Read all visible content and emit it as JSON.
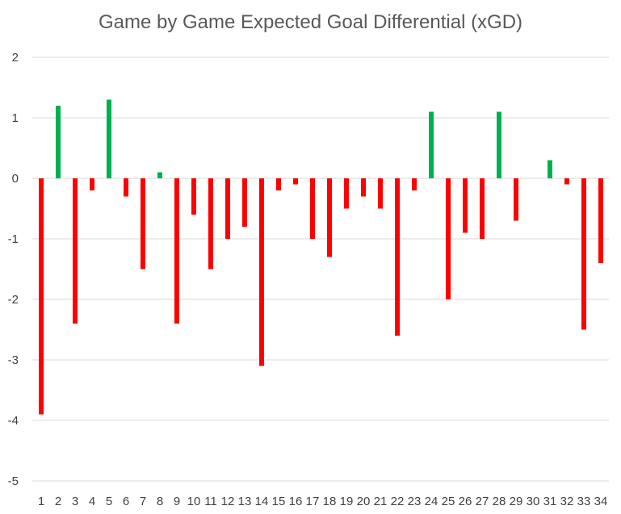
{
  "chart_data": {
    "type": "bar",
    "title": "Game by Game Expected Goal Differential (xGD)",
    "xlabel": "",
    "ylabel": "",
    "ylim": [
      -5,
      2
    ],
    "yticks": [
      "2",
      "1",
      "0",
      "-1",
      "-2",
      "-3",
      "-4",
      "-5"
    ],
    "ytick_values": [
      2,
      1,
      0,
      -1,
      -2,
      -3,
      -4,
      -5
    ],
    "categories": [
      "1",
      "2",
      "3",
      "4",
      "5",
      "6",
      "7",
      "8",
      "9",
      "10",
      "11",
      "12",
      "13",
      "14",
      "15",
      "16",
      "17",
      "18",
      "19",
      "20",
      "21",
      "22",
      "23",
      "24",
      "25",
      "26",
      "27",
      "28",
      "29",
      "30",
      "31",
      "32",
      "33",
      "34"
    ],
    "values": [
      -3.9,
      1.2,
      -2.4,
      -0.2,
      1.3,
      -0.3,
      -1.5,
      0.1,
      -2.4,
      -0.6,
      -1.5,
      -1.0,
      -0.8,
      -3.1,
      -0.2,
      -0.1,
      -1.0,
      -1.3,
      -0.5,
      -0.3,
      -0.5,
      -2.6,
      -0.2,
      1.1,
      -2.0,
      -0.9,
      -1.0,
      1.1,
      -0.7,
      0.0,
      0.3,
      -0.1,
      -2.5,
      -1.4
    ],
    "grid": true,
    "legend": "none",
    "colors": {
      "positive": "#00b050",
      "negative": "#ff0000",
      "grid": "#d9d9d9",
      "text": "#404040",
      "title": "#595959"
    }
  }
}
